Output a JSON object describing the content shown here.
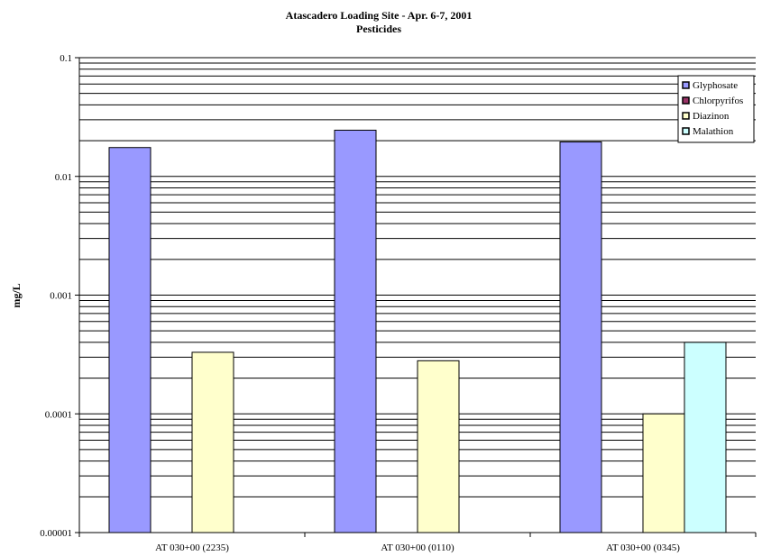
{
  "chart_data": {
    "type": "bar",
    "title": "Atascadero Loading Site - Apr. 6-7, 2001",
    "subtitle": "Pesticides",
    "xlabel": "",
    "ylabel": "mg/L",
    "yscale": "log",
    "ylim": [
      1e-05,
      0.1
    ],
    "yticks": [
      {
        "value": 0.1,
        "label": "0.1"
      },
      {
        "value": 0.01,
        "label": "0.01"
      },
      {
        "value": 0.001,
        "label": "0.001"
      },
      {
        "value": 0.0001,
        "label": "0.0001"
      },
      {
        "value": 1e-05,
        "label": "0.00001"
      }
    ],
    "grid": true,
    "legend_position": "top-right",
    "categories": [
      "AT 030+00 (2235)",
      "AT 030+00 (0110)",
      "AT 030+00 (0345)"
    ],
    "series": [
      {
        "name": "Glyphosate",
        "color": "#9999ff",
        "values": [
          0.0175,
          0.0245,
          0.0195
        ]
      },
      {
        "name": "Chlorpyrifos",
        "color": "#993366",
        "values": [
          null,
          null,
          null
        ]
      },
      {
        "name": "Diazinon",
        "color": "#ffffcc",
        "values": [
          0.00033,
          0.00028,
          0.0001
        ]
      },
      {
        "name": "Malathion",
        "color": "#ccffff",
        "values": [
          null,
          null,
          0.0004
        ]
      }
    ]
  }
}
